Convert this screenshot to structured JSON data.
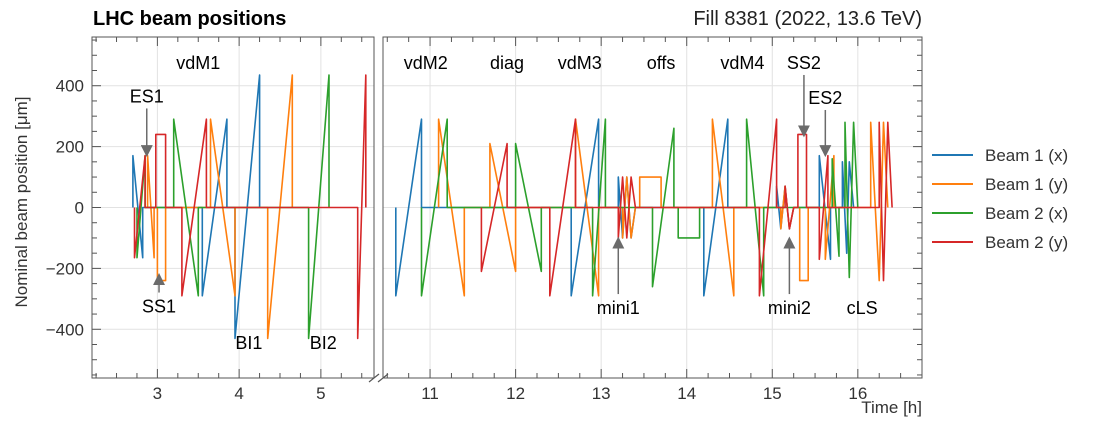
{
  "chart_data": {
    "type": "line",
    "title": "LHC beam positions",
    "subtitle": "Fill 8381 (2022, 13.6 TeV)",
    "xlabel": "Time [h]",
    "ylabel": "Nominal beam position [μm]",
    "ylim": [
      -560,
      560
    ],
    "yticks": [
      -400,
      -200,
      0,
      200,
      400
    ],
    "x_broken_axis": true,
    "x_segments": [
      {
        "xlim": [
          2.2,
          5.65
        ],
        "ticks": [
          3,
          4,
          5
        ]
      },
      {
        "xlim": [
          10.45,
          16.75
        ],
        "ticks": [
          11,
          12,
          13,
          14,
          15,
          16
        ]
      }
    ],
    "grid": true,
    "legend_position": "right",
    "series": [
      {
        "name": "Beam 1 (x)",
        "color": "#1f77b4",
        "points": [
          [
            2.7,
            0
          ],
          [
            2.7,
            170
          ],
          [
            2.82,
            -165
          ],
          [
            2.82,
            0
          ],
          [
            3.55,
            0
          ],
          [
            3.55,
            -290
          ],
          [
            3.85,
            290
          ],
          [
            3.85,
            0
          ],
          [
            3.95,
            0
          ],
          [
            3.95,
            -430
          ],
          [
            4.25,
            435
          ],
          [
            4.25,
            0
          ],
          [
            10.6,
            0
          ],
          [
            10.6,
            -290
          ],
          [
            10.9,
            290
          ],
          [
            10.9,
            0
          ],
          [
            12.65,
            0
          ],
          [
            12.65,
            -290
          ],
          [
            12.97,
            290
          ],
          [
            12.97,
            0
          ],
          [
            13.2,
            0
          ],
          [
            13.2,
            100
          ],
          [
            13.25,
            -100
          ],
          [
            13.3,
            100
          ],
          [
            13.35,
            -100
          ],
          [
            13.4,
            0
          ],
          [
            14.2,
            0
          ],
          [
            14.2,
            -290
          ],
          [
            14.48,
            290
          ],
          [
            14.48,
            0
          ],
          [
            15.05,
            0
          ],
          [
            15.05,
            70
          ],
          [
            15.1,
            -70
          ],
          [
            15.15,
            70
          ],
          [
            15.2,
            -70
          ],
          [
            15.25,
            0
          ],
          [
            15.55,
            0
          ],
          [
            15.55,
            170
          ],
          [
            15.68,
            -170
          ],
          [
            15.68,
            0
          ],
          [
            15.82,
            0
          ],
          [
            15.82,
            150
          ],
          [
            15.87,
            -150
          ],
          [
            15.9,
            150
          ],
          [
            15.95,
            0
          ]
        ]
      },
      {
        "name": "Beam 1 (y)",
        "color": "#ff7f0e",
        "points": [
          [
            2.88,
            0
          ],
          [
            2.88,
            170
          ],
          [
            2.96,
            -165
          ],
          [
            2.96,
            0
          ],
          [
            3.0,
            0
          ],
          [
            3.0,
            -240
          ],
          [
            3.1,
            -240
          ],
          [
            3.1,
            0
          ],
          [
            3.65,
            0
          ],
          [
            3.65,
            290
          ],
          [
            3.95,
            -290
          ],
          [
            3.95,
            0
          ],
          [
            4.35,
            0
          ],
          [
            4.35,
            -430
          ],
          [
            4.65,
            435
          ],
          [
            4.65,
            0
          ],
          [
            11.1,
            0
          ],
          [
            11.1,
            290
          ],
          [
            11.4,
            -290
          ],
          [
            11.4,
            0
          ],
          [
            11.7,
            0
          ],
          [
            11.7,
            210
          ],
          [
            12.0,
            -210
          ],
          [
            12.0,
            0
          ],
          [
            12.7,
            0
          ],
          [
            12.7,
            290
          ],
          [
            12.97,
            -290
          ],
          [
            12.97,
            0
          ],
          [
            13.25,
            0
          ],
          [
            13.25,
            -100
          ],
          [
            13.3,
            100
          ],
          [
            13.35,
            -100
          ],
          [
            13.4,
            0
          ],
          [
            13.45,
            0
          ],
          [
            13.45,
            100
          ],
          [
            13.7,
            100
          ],
          [
            13.7,
            0
          ],
          [
            14.3,
            0
          ],
          [
            14.3,
            290
          ],
          [
            14.55,
            -290
          ],
          [
            14.55,
            0
          ],
          [
            15.1,
            0
          ],
          [
            15.1,
            -70
          ],
          [
            15.15,
            70
          ],
          [
            15.2,
            -70
          ],
          [
            15.25,
            0
          ],
          [
            15.32,
            0
          ],
          [
            15.32,
            -240
          ],
          [
            15.42,
            -240
          ],
          [
            15.42,
            0
          ],
          [
            15.62,
            0
          ],
          [
            15.62,
            -170
          ],
          [
            15.72,
            170
          ],
          [
            15.72,
            0
          ],
          [
            16.15,
            0
          ],
          [
            16.15,
            280
          ],
          [
            16.25,
            -240
          ],
          [
            16.3,
            280
          ],
          [
            16.35,
            0
          ]
        ]
      },
      {
        "name": "Beam 2 (x)",
        "color": "#2ca02c",
        "points": [
          [
            2.75,
            0
          ],
          [
            2.75,
            -165
          ],
          [
            2.85,
            170
          ],
          [
            2.85,
            0
          ],
          [
            3.2,
            0
          ],
          [
            3.2,
            290
          ],
          [
            3.5,
            -290
          ],
          [
            3.5,
            0
          ],
          [
            4.85,
            0
          ],
          [
            4.85,
            -430
          ],
          [
            5.1,
            435
          ],
          [
            5.1,
            0
          ],
          [
            10.9,
            0
          ],
          [
            10.9,
            -290
          ],
          [
            11.2,
            290
          ],
          [
            11.2,
            0
          ],
          [
            12.0,
            0
          ],
          [
            12.0,
            210
          ],
          [
            12.3,
            -210
          ],
          [
            12.3,
            0
          ],
          [
            12.9,
            0
          ],
          [
            12.9,
            -290
          ],
          [
            13.05,
            290
          ],
          [
            13.05,
            0
          ],
          [
            13.6,
            0
          ],
          [
            13.6,
            -260
          ],
          [
            13.85,
            260
          ],
          [
            13.85,
            0
          ],
          [
            13.9,
            0
          ],
          [
            13.9,
            -100
          ],
          [
            14.15,
            -100
          ],
          [
            14.15,
            0
          ],
          [
            14.7,
            0
          ],
          [
            14.7,
            290
          ],
          [
            14.9,
            -290
          ],
          [
            14.9,
            0
          ],
          [
            15.7,
            0
          ],
          [
            15.7,
            160
          ],
          [
            15.78,
            -160
          ],
          [
            15.78,
            0
          ],
          [
            15.85,
            0
          ],
          [
            15.85,
            280
          ],
          [
            15.9,
            -230
          ],
          [
            15.95,
            280
          ],
          [
            16.0,
            0
          ]
        ]
      },
      {
        "name": "Beam 2 (y)",
        "color": "#d62728",
        "points": [
          [
            2.72,
            0
          ],
          [
            2.72,
            -165
          ],
          [
            2.85,
            170
          ],
          [
            2.85,
            0
          ],
          [
            2.98,
            0
          ],
          [
            2.98,
            240
          ],
          [
            3.1,
            240
          ],
          [
            3.1,
            0
          ],
          [
            3.3,
            0
          ],
          [
            3.3,
            -290
          ],
          [
            3.6,
            290
          ],
          [
            3.6,
            0
          ],
          [
            5.45,
            0
          ],
          [
            5.45,
            -430
          ],
          [
            5.55,
            435
          ],
          [
            5.55,
            0
          ],
          [
            11.6,
            0
          ],
          [
            11.6,
            -210
          ],
          [
            11.9,
            210
          ],
          [
            11.9,
            0
          ],
          [
            12.4,
            0
          ],
          [
            12.4,
            -290
          ],
          [
            12.7,
            290
          ],
          [
            12.7,
            0
          ],
          [
            13.2,
            0
          ],
          [
            13.2,
            -100
          ],
          [
            13.25,
            100
          ],
          [
            13.3,
            -100
          ],
          [
            13.35,
            100
          ],
          [
            13.4,
            0
          ],
          [
            14.85,
            0
          ],
          [
            14.85,
            -290
          ],
          [
            15.05,
            290
          ],
          [
            15.05,
            0
          ],
          [
            15.15,
            0
          ],
          [
            15.15,
            70
          ],
          [
            15.2,
            -70
          ],
          [
            15.25,
            0
          ],
          [
            15.3,
            0
          ],
          [
            15.3,
            240
          ],
          [
            15.4,
            240
          ],
          [
            15.4,
            0
          ],
          [
            15.55,
            0
          ],
          [
            15.55,
            -170
          ],
          [
            15.65,
            170
          ],
          [
            15.65,
            0
          ],
          [
            16.25,
            0
          ],
          [
            16.25,
            280
          ],
          [
            16.3,
            -240
          ],
          [
            16.35,
            280
          ],
          [
            16.4,
            0
          ]
        ]
      }
    ],
    "annotations": [
      {
        "text": "vdM1",
        "x": 3.5,
        "y": 455,
        "segment": 0
      },
      {
        "text": "ES1",
        "x": 2.87,
        "y": 345,
        "segment": 0,
        "arrow_to_y": 185
      },
      {
        "text": "SS1",
        "x": 3.02,
        "y": -345,
        "segment": 0,
        "arrow_to_y": -235
      },
      {
        "text": "BI1",
        "x": 4.12,
        "y": -465,
        "segment": 0
      },
      {
        "text": "BI2",
        "x": 5.03,
        "y": -465,
        "segment": 0
      },
      {
        "text": "vdM2",
        "x": 10.95,
        "y": 455,
        "segment": 1
      },
      {
        "text": "diag",
        "x": 11.9,
        "y": 455,
        "segment": 1
      },
      {
        "text": "vdM3",
        "x": 12.75,
        "y": 455,
        "segment": 1
      },
      {
        "text": "offs",
        "x": 13.7,
        "y": 455,
        "segment": 1
      },
      {
        "text": "vdM4",
        "x": 14.65,
        "y": 455,
        "segment": 1
      },
      {
        "text": "SS2",
        "x": 15.37,
        "y": 455,
        "segment": 1,
        "arrow_to_y": 250
      },
      {
        "text": "ES2",
        "x": 15.62,
        "y": 340,
        "segment": 1,
        "arrow_to_y": 185
      },
      {
        "text": "mini1",
        "x": 13.2,
        "y": -350,
        "segment": 1,
        "arrow_to_y": -115
      },
      {
        "text": "mini2",
        "x": 15.2,
        "y": -350,
        "segment": 1,
        "arrow_to_y": -115
      },
      {
        "text": "cLS",
        "x": 16.05,
        "y": -350,
        "segment": 1
      }
    ]
  }
}
